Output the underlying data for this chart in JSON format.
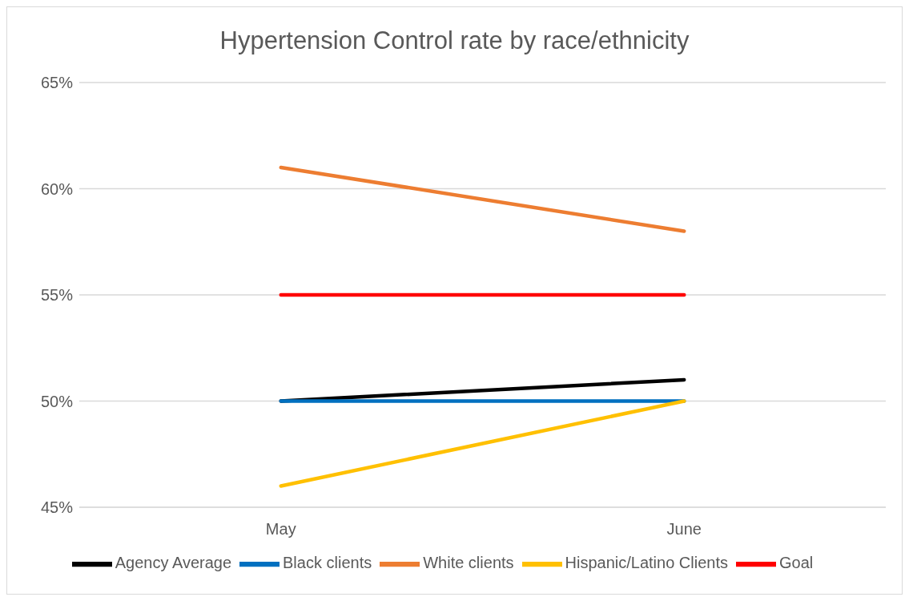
{
  "chart_data": {
    "type": "line",
    "title": "Hypertension Control rate by race/ethnicity",
    "categories": [
      "May",
      "June"
    ],
    "series": [
      {
        "name": "Agency Average",
        "color": "#000000",
        "values": [
          50,
          51
        ]
      },
      {
        "name": "Black clients",
        "color": "#0070c0",
        "values": [
          50,
          50
        ]
      },
      {
        "name": "White clients",
        "color": "#ed7d31",
        "values": [
          61,
          58
        ]
      },
      {
        "name": "Hispanic/Latino Clients",
        "color": "#ffc000",
        "values": [
          46,
          50
        ]
      },
      {
        "name": "Goal",
        "color": "#ff0000",
        "values": [
          55,
          55
        ]
      }
    ],
    "ylim": [
      45,
      65
    ],
    "yticks": [
      {
        "value": 45,
        "label": "45%"
      },
      {
        "value": 50,
        "label": "50%"
      },
      {
        "value": 55,
        "label": "55%"
      },
      {
        "value": 60,
        "label": "60%"
      },
      {
        "value": 65,
        "label": "65%"
      }
    ],
    "grid": "y",
    "legend": "bottom",
    "marker": "none",
    "line_style": "solid"
  }
}
